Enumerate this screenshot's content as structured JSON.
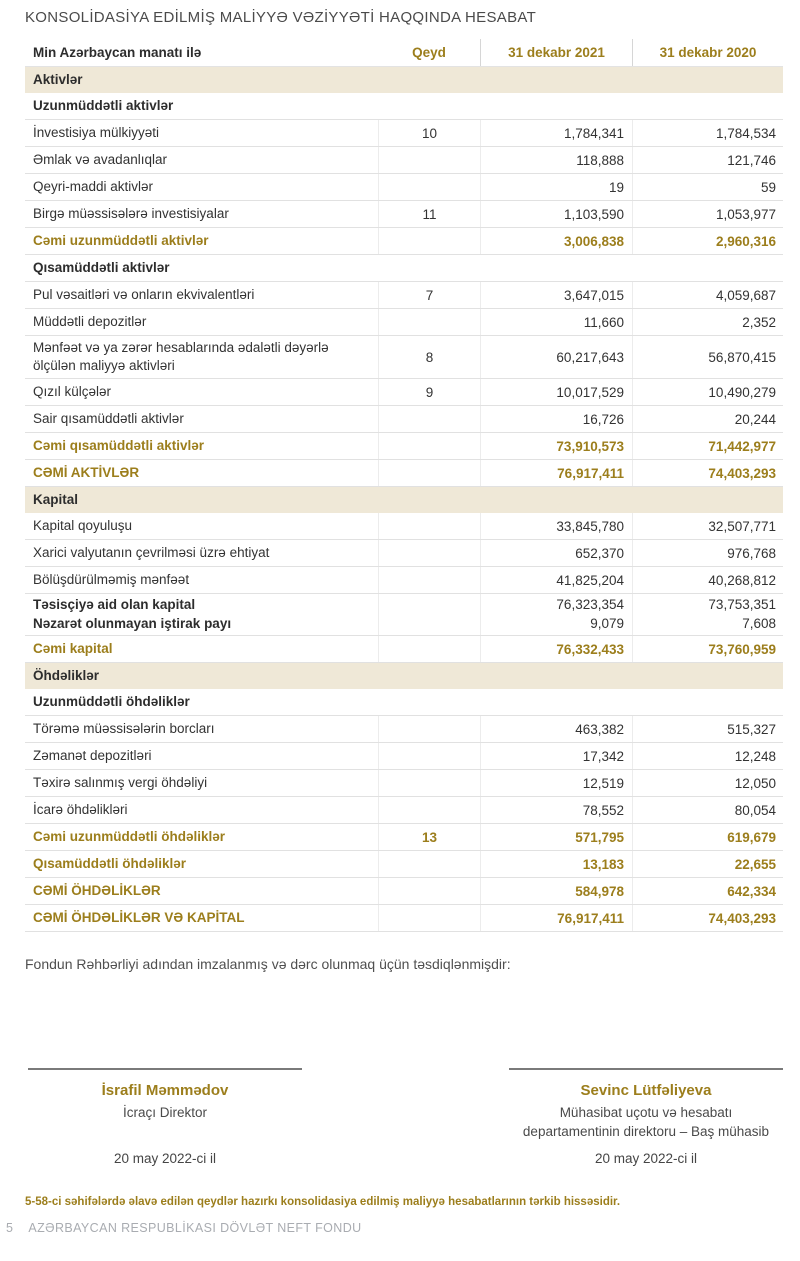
{
  "title": "KONSOLİDASİYA EDİLMİŞ MALİYYƏ VƏZİYYƏTİ HAQQINDA HESABAT",
  "colors": {
    "accent_gold": "#9c7e1c",
    "section_background": "#efe8d7",
    "footer_gray": "#a9acb1"
  },
  "table": {
    "columns": {
      "label": "Min Azərbaycan manatı ilə",
      "note": "Qeyd",
      "y2021": "31 dekabr 2021",
      "y2020": "31 dekabr 2020"
    },
    "rows": [
      {
        "type": "section",
        "label": "Aktivlər"
      },
      {
        "type": "subheader",
        "label": "Uzunmüddətli aktivlər"
      },
      {
        "type": "item",
        "label": "İnvestisiya mülkiyyəti",
        "note": "10",
        "v2021": "1,784,341",
        "v2020": "1,784,534"
      },
      {
        "type": "item",
        "label": "Əmlak və avadanlıqlar",
        "note": "",
        "v2021": "118,888",
        "v2020": "121,746"
      },
      {
        "type": "item",
        "label": "Qeyri-maddi aktivlər",
        "note": "",
        "v2021": "19",
        "v2020": "59"
      },
      {
        "type": "item",
        "label": "Birgə müəssisələrə investisiyalar",
        "note": "11",
        "v2021": "1,103,590",
        "v2020": "1,053,977"
      },
      {
        "type": "total",
        "label": "Cəmi uzunmüddətli aktivlər",
        "note": "",
        "v2021": "3,006,838",
        "v2020": "2,960,316"
      },
      {
        "type": "subheader",
        "label": "Qısamüddətli aktivlər"
      },
      {
        "type": "item",
        "label": "Pul vəsaitləri və onların ekvivalentləri",
        "note": "7",
        "v2021": "3,647,015",
        "v2020": "4,059,687"
      },
      {
        "type": "item",
        "label": "Müddətli depozitlər",
        "note": "",
        "v2021": "11,660",
        "v2020": "2,352"
      },
      {
        "type": "item",
        "label": "Mənfəət və ya zərər hesablarında ədalətli dəyərlə ölçülən maliyyə aktivləri",
        "note": "8",
        "v2021": "60,217,643",
        "v2020": "56,870,415"
      },
      {
        "type": "item",
        "label": "Qızıl külçələr",
        "note": "9",
        "v2021": "10,017,529",
        "v2020": "10,490,279"
      },
      {
        "type": "item",
        "label": "Sair qısamüddətli aktivlər",
        "note": "",
        "v2021": "16,726",
        "v2020": "20,244"
      },
      {
        "type": "total",
        "label": "Cəmi qısamüddətli aktivlər",
        "note": "",
        "v2021": "73,910,573",
        "v2020": "71,442,977"
      },
      {
        "type": "grandtotal",
        "label": "CƏMİ AKTİVLƏR",
        "note": "",
        "v2021": "76,917,411",
        "v2020": "74,403,293"
      },
      {
        "type": "section",
        "label": "Kapital"
      },
      {
        "type": "item",
        "label": "Kapital qoyuluşu",
        "note": "",
        "v2021": "33,845,780",
        "v2020": "32,507,771"
      },
      {
        "type": "item",
        "label": "Xarici valyutanın çevrilməsi üzrə ehtiyat",
        "note": "",
        "v2021": "652,370",
        "v2020": "976,768"
      },
      {
        "type": "item",
        "label": "Bölüşdürülməmiş mənfəət",
        "note": "",
        "v2021": "41,825,204",
        "v2020": "40,268,812"
      },
      {
        "type": "group",
        "lines": [
          {
            "label": "Təsisçiyə aid olan kapital",
            "v2021": "76,323,354",
            "v2020": "73,753,351"
          },
          {
            "label": "Nəzarət olunmayan iştirak payı",
            "v2021": "9,079",
            "v2020": "7,608"
          }
        ]
      },
      {
        "type": "total",
        "label": "Cəmi kapital",
        "note": "",
        "v2021": "76,332,433",
        "v2020": "73,760,959"
      },
      {
        "type": "section",
        "label": "Öhdəliklər"
      },
      {
        "type": "subheader",
        "label": "Uzunmüddətli öhdəliklər"
      },
      {
        "type": "item",
        "label": "Törəmə müəssisələrin borcları",
        "note": "",
        "v2021": "463,382",
        "v2020": "515,327"
      },
      {
        "type": "item",
        "label": "Zəmanət depozitləri",
        "note": "",
        "v2021": "17,342",
        "v2020": "12,248"
      },
      {
        "type": "item",
        "label": "Təxirə salınmış vergi öhdəliyi",
        "note": "",
        "v2021": "12,519",
        "v2020": "12,050"
      },
      {
        "type": "item",
        "label": "İcarə öhdəlikləri",
        "note": "",
        "v2021": "78,552",
        "v2020": "80,054"
      },
      {
        "type": "total",
        "label": "Cəmi uzunmüddətli öhdəliklər",
        "note": "13",
        "v2021": "571,795",
        "v2020": "619,679"
      },
      {
        "type": "total",
        "label": "Qısamüddətli öhdəliklər",
        "note": "",
        "v2021": "13,183",
        "v2020": "22,655"
      },
      {
        "type": "grandtotal",
        "label": "CƏMİ ÖHDƏLİKLƏR",
        "note": "",
        "v2021": "584,978",
        "v2020": "642,334"
      },
      {
        "type": "grandtotal",
        "label": "CƏMİ ÖHDƏLİKLƏR VƏ KAPİTAL",
        "note": "",
        "v2021": "76,917,411",
        "v2020": "74,403,293"
      }
    ]
  },
  "approval_statement": "Fondun Rəhbərliyi adından imzalanmış və dərc olunmaq üçün təsdiqlənmişdir:",
  "signatories": [
    {
      "name": "İsrafil Məmmədov",
      "role": "İcraçı Direktor",
      "date": "20 may 2022-ci il"
    },
    {
      "name": "Sevinc Lütfəliyeva",
      "role": "Mühasibat uçotu və hesabatı departamentinin direktoru – Baş mühasib",
      "date": "20 may 2022-ci il"
    }
  ],
  "bottom_note": "5-58-ci səhifələrdə əlavə edilən qeydlər hazırkı konsolidasiya edilmiş maliyyə hesabatlarının tərkib hissəsidir.",
  "footer": {
    "page_number": "5",
    "organization": "AZƏRBAYCAN RESPUBLİKASI DÖVLƏT NEFT FONDU"
  }
}
